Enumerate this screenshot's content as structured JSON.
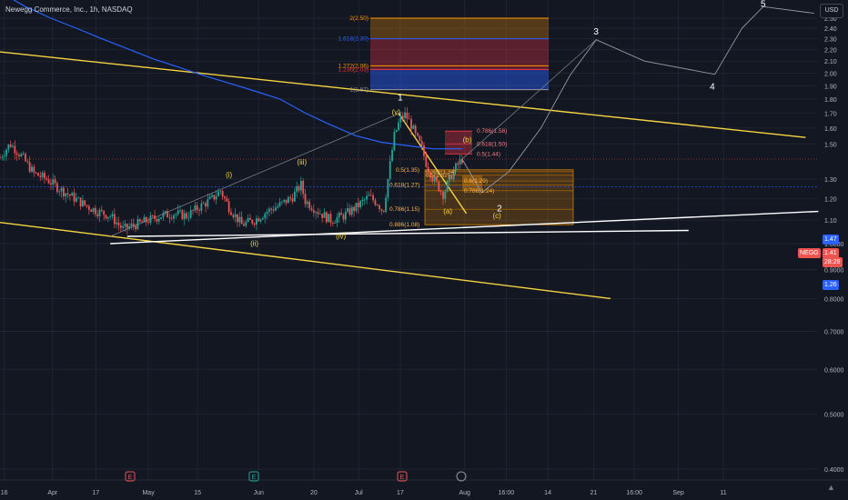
{
  "header": {
    "title": "Newegg Commerce, Inc., 1h, NASDAQ"
  },
  "currency_button": "USD",
  "ticker_tag": "NEGG",
  "price_labels": {
    "last": "1.41",
    "countdown": "28:28",
    "level_147": "1.47",
    "level_126": "1.26"
  },
  "colors": {
    "background": "#131722",
    "grid": "#1f2433",
    "up": "#26a69a",
    "down": "#ef5350",
    "ma": "#2962ff",
    "trendline": "#f5d442",
    "support": "#ffffff",
    "wave_label": "#f5d442"
  },
  "icons": [
    "earnings-icon",
    "earnings-icon",
    "earnings-icon",
    "dividend-icon",
    "tradingview-logo-icon"
  ],
  "chart_data": {
    "type": "line",
    "ylim": [
      0.4,
      2.6
    ],
    "y_scale": "log",
    "y_ticks": [
      2.5,
      2.4,
      2.3,
      2.2,
      2.1,
      2.0,
      1.9,
      1.8,
      1.7,
      1.6,
      1.5,
      1.3,
      1.2,
      1.1,
      1.0,
      0.9,
      0.8,
      0.7,
      0.6,
      0.5,
      0.4
    ],
    "y_tick_labels": [
      "2.50",
      "2.40",
      "2.30",
      "2.20",
      "2.10",
      "2.00",
      "1.90",
      "1.80",
      "1.70",
      "1.60",
      "1.50",
      "1.30",
      "1.20",
      "1.10",
      "1.0000",
      "0.9000",
      "0.8000",
      "0.7000",
      "0.6000",
      "0.5000",
      "0.4000"
    ],
    "x_ticks": [
      {
        "label": "16",
        "pos": 0.005
      },
      {
        "label": "Apr",
        "pos": 0.062
      },
      {
        "label": "17",
        "pos": 0.113
      },
      {
        "label": "May",
        "pos": 0.175
      },
      {
        "label": "15",
        "pos": 0.233
      },
      {
        "label": "Jun",
        "pos": 0.305
      },
      {
        "label": "20",
        "pos": 0.37
      },
      {
        "label": "Jul",
        "pos": 0.423
      },
      {
        "label": "17",
        "pos": 0.472
      },
      {
        "label": "Aug",
        "pos": 0.548
      },
      {
        "label": "16:00",
        "pos": 0.597
      },
      {
        "label": "14",
        "pos": 0.646
      },
      {
        "label": "21",
        "pos": 0.7
      },
      {
        "label": "16:00",
        "pos": 0.748
      },
      {
        "label": "Sep",
        "pos": 0.8
      },
      {
        "label": "11",
        "pos": 0.853
      }
    ],
    "price_path": [
      [
        0.0,
        1.42
      ],
      [
        0.012,
        1.5
      ],
      [
        0.025,
        1.43
      ],
      [
        0.04,
        1.33
      ],
      [
        0.055,
        1.3
      ],
      [
        0.07,
        1.25
      ],
      [
        0.085,
        1.21
      ],
      [
        0.1,
        1.17
      ],
      [
        0.115,
        1.14
      ],
      [
        0.13,
        1.12
      ],
      [
        0.145,
        1.06
      ],
      [
        0.16,
        1.08
      ],
      [
        0.175,
        1.1
      ],
      [
        0.19,
        1.12
      ],
      [
        0.205,
        1.13
      ],
      [
        0.22,
        1.12
      ],
      [
        0.235,
        1.16
      ],
      [
        0.25,
        1.2
      ],
      [
        0.26,
        1.24
      ],
      [
        0.27,
        1.16
      ],
      [
        0.285,
        1.08
      ],
      [
        0.3,
        1.1
      ],
      [
        0.315,
        1.14
      ],
      [
        0.33,
        1.17
      ],
      [
        0.345,
        1.21
      ],
      [
        0.355,
        1.27
      ],
      [
        0.36,
        1.19
      ],
      [
        0.375,
        1.14
      ],
      [
        0.39,
        1.1
      ],
      [
        0.405,
        1.12
      ],
      [
        0.42,
        1.16
      ],
      [
        0.435,
        1.21
      ],
      [
        0.445,
        1.18
      ],
      [
        0.452,
        1.14
      ],
      [
        0.46,
        1.38
      ],
      [
        0.465,
        1.55
      ],
      [
        0.472,
        1.66
      ],
      [
        0.478,
        1.69
      ],
      [
        0.485,
        1.62
      ],
      [
        0.49,
        1.55
      ],
      [
        0.497,
        1.48
      ],
      [
        0.503,
        1.38
      ],
      [
        0.51,
        1.31
      ],
      [
        0.517,
        1.26
      ],
      [
        0.523,
        1.22
      ],
      [
        0.53,
        1.3
      ],
      [
        0.537,
        1.36
      ],
      [
        0.545,
        1.41
      ]
    ],
    "ma_path": [
      [
        0.0,
        2.78
      ],
      [
        0.03,
        2.62
      ],
      [
        0.06,
        2.5
      ],
      [
        0.09,
        2.4
      ],
      [
        0.12,
        2.3
      ],
      [
        0.15,
        2.21
      ],
      [
        0.18,
        2.12
      ],
      [
        0.21,
        2.05
      ],
      [
        0.24,
        1.98
      ],
      [
        0.27,
        1.92
      ],
      [
        0.3,
        1.86
      ],
      [
        0.33,
        1.8
      ],
      [
        0.36,
        1.7
      ],
      [
        0.39,
        1.62
      ],
      [
        0.42,
        1.55
      ],
      [
        0.45,
        1.51
      ],
      [
        0.48,
        1.49
      ],
      [
        0.51,
        1.47
      ],
      [
        0.545,
        1.47
      ]
    ],
    "fib_extension": {
      "levels": [
        {
          "label": "2(2.50)",
          "value": 2.5
        },
        {
          "label": "1.618(2.30)",
          "value": 2.3
        },
        {
          "label": "1.272(2.06)",
          "value": 2.06
        },
        {
          "label": "1.236(2.03)",
          "value": 2.03
        },
        {
          "label": "1(1.87)",
          "value": 1.87
        }
      ]
    },
    "fib_retracement_b": [
      {
        "label": "0.786(1.58)",
        "value": 1.58
      },
      {
        "label": "0.618(1.50)",
        "value": 1.5
      },
      {
        "label": "0.5(1.44)",
        "value": 1.44
      }
    ],
    "fib_retracement_main": [
      {
        "label": "0.5(1.35)",
        "value": 1.35
      },
      {
        "label": "0.382(1.34)",
        "value": 1.34
      },
      {
        "label": "0.5(1.32)",
        "value": 1.32
      },
      {
        "label": "0.618(1.27)",
        "value": 1.27
      },
      {
        "label": "0.6(1.29)",
        "value": 1.29
      },
      {
        "label": "0.786(1.24)",
        "value": 1.24
      },
      {
        "label": "0.786(1.15)",
        "value": 1.15
      },
      {
        "label": "0.886(1.08)",
        "value": 1.08
      }
    ],
    "wave_labels": [
      {
        "text": "1",
        "x": 0.472,
        "y": 1.79,
        "color": "white"
      },
      {
        "text": "(v)",
        "x": 0.467,
        "y": 1.69,
        "color": "yellow"
      },
      {
        "text": "(iii)",
        "x": 0.356,
        "y": 1.38,
        "color": "yellow"
      },
      {
        "text": "(i)",
        "x": 0.27,
        "y": 1.31,
        "color": "yellow"
      },
      {
        "text": "(ii)",
        "x": 0.3,
        "y": 0.99,
        "color": "yellow"
      },
      {
        "text": "(iv)",
        "x": 0.402,
        "y": 1.02,
        "color": "yellow"
      },
      {
        "text": "(b)",
        "x": 0.551,
        "y": 1.51,
        "color": "yellow"
      },
      {
        "text": "(a)",
        "x": 0.528,
        "y": 1.13,
        "color": "yellow"
      },
      {
        "text": "(c)",
        "x": 0.586,
        "y": 1.11,
        "color": "yellow"
      },
      {
        "text": "2",
        "x": 0.589,
        "y": 1.14,
        "color": "white"
      },
      {
        "text": "3",
        "x": 0.703,
        "y": 2.34,
        "color": "white"
      },
      {
        "text": "4",
        "x": 0.84,
        "y": 1.87,
        "color": "white"
      },
      {
        "text": "5",
        "x": 0.9,
        "y": 2.62,
        "color": "white"
      }
    ],
    "projection_path": [
      [
        0.545,
        1.41
      ],
      [
        0.568,
        1.23
      ],
      [
        0.6,
        1.34
      ],
      [
        0.638,
        1.6
      ],
      [
        0.672,
        1.98
      ],
      [
        0.703,
        2.29
      ],
      [
        0.76,
        2.1
      ],
      [
        0.843,
        1.99
      ],
      [
        0.875,
        2.4
      ],
      [
        0.9,
        2.62
      ],
      [
        0.96,
        2.55
      ]
    ],
    "trendlines": [
      {
        "kind": "resistance",
        "from": [
          0.0,
          2.18
        ],
        "to": [
          0.95,
          1.54
        ]
      },
      {
        "kind": "lower-channel",
        "from": [
          0.0,
          1.09
        ],
        "to": [
          0.72,
          0.8
        ]
      },
      {
        "kind": "support",
        "from": [
          0.13,
          1.0
        ],
        "to": [
          0.965,
          1.14
        ]
      },
      {
        "kind": "support-2",
        "from": [
          0.15,
          1.03
        ],
        "to": [
          0.812,
          1.055
        ]
      }
    ]
  }
}
